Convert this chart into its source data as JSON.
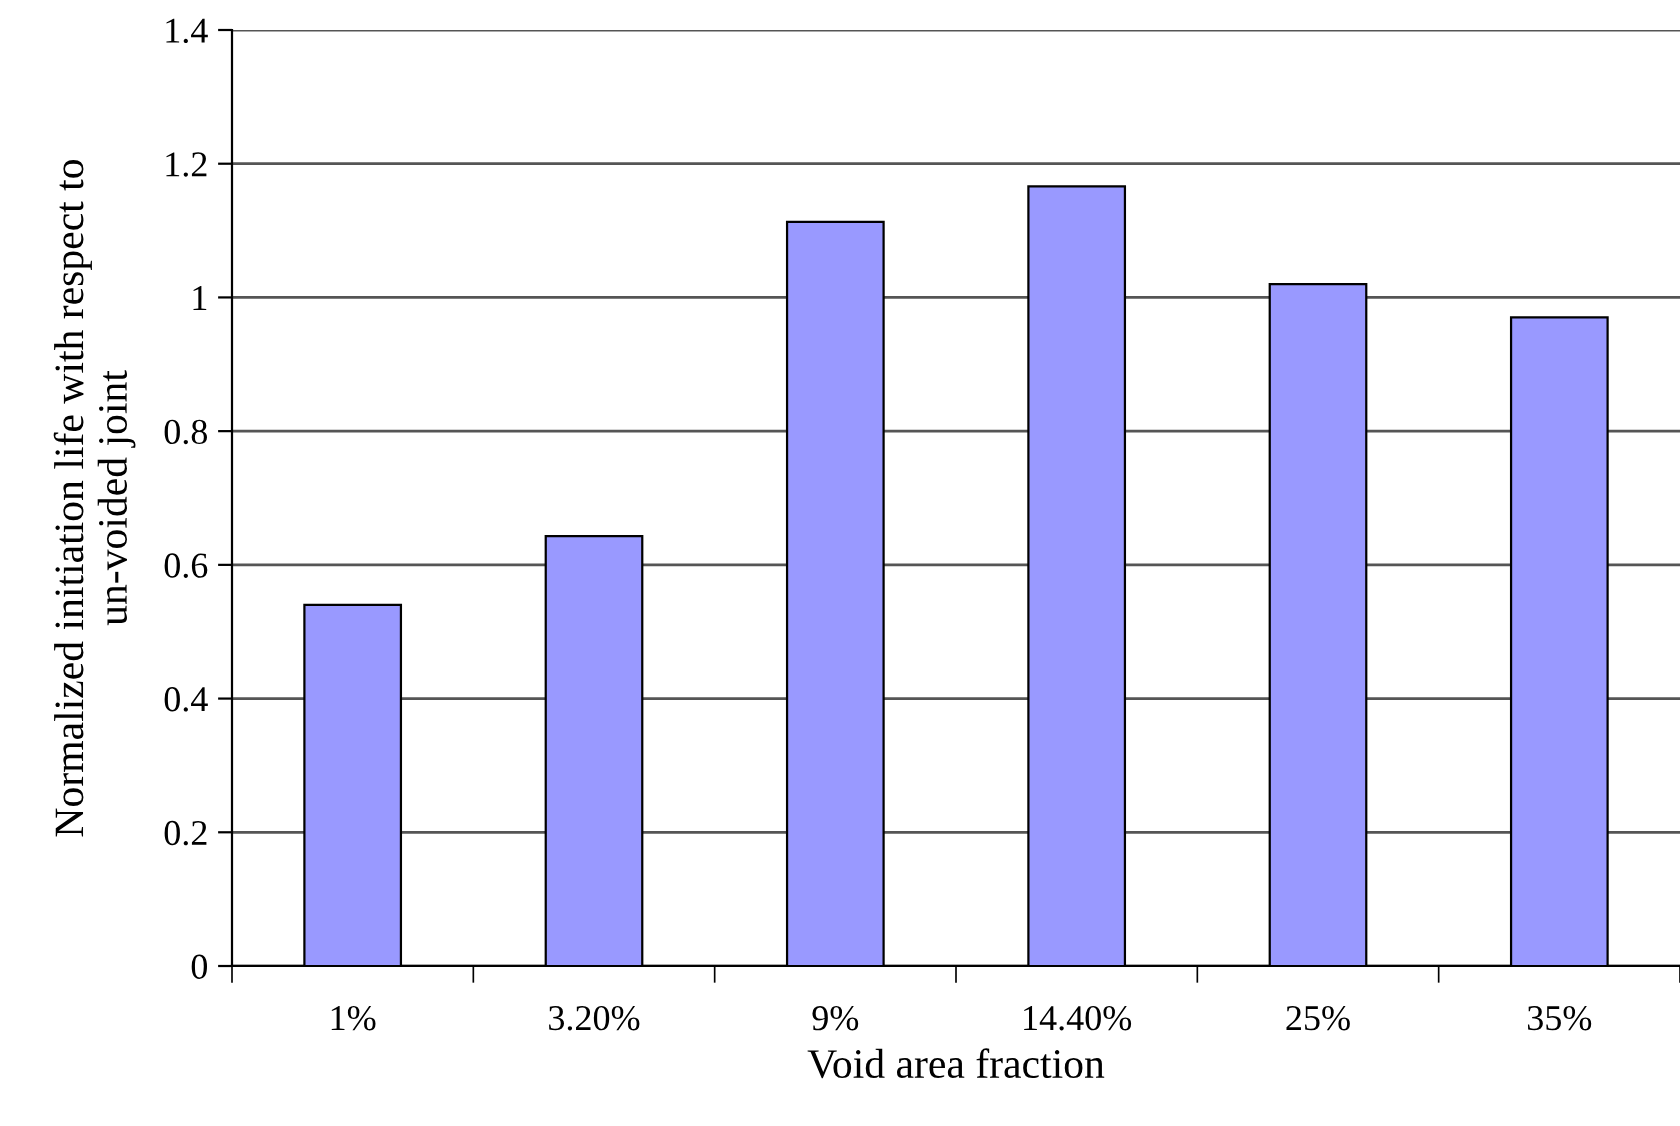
{
  "chart_data": {
    "type": "bar",
    "xlabel": "Void area fraction",
    "ylabel": "Normalized initiation life with respect to\nun-voided joint",
    "categories": [
      "1%",
      "3.20%",
      "9%",
      "14.40%",
      "25%",
      "35%"
    ],
    "values": [
      0.54,
      0.643,
      1.113,
      1.166,
      1.02,
      0.97
    ],
    "color": "#9999ff",
    "ylim": [
      0,
      1.4
    ],
    "yticks": [
      0,
      0.2,
      0.4,
      0.6,
      0.8,
      1,
      1.2,
      1.4
    ],
    "grid": "y"
  }
}
